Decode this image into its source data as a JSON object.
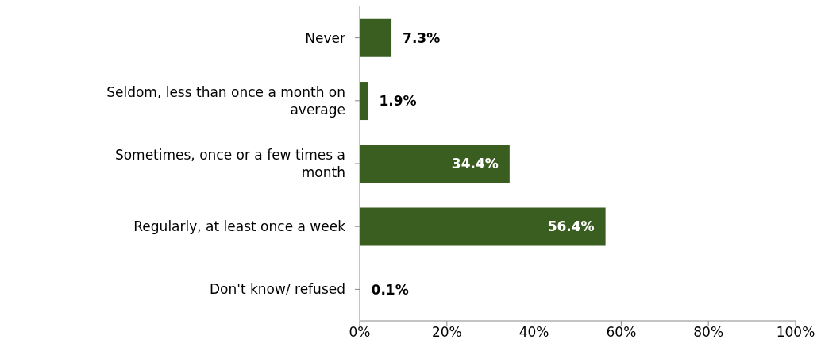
{
  "chart_data": {
    "type": "bar",
    "orientation": "horizontal",
    "categories": [
      "Never",
      "Seldom, less than once a month on average",
      "Sometimes, once or a few times a month",
      "Regularly, at least once a week",
      "Don't know/ refused"
    ],
    "values": [
      7.3,
      1.9,
      34.4,
      56.4,
      0.1
    ],
    "value_labels": [
      "7.3%",
      "1.9%",
      "34.4%",
      "56.4%",
      "0.1%"
    ],
    "color": "#3a5e1f",
    "xlim": [
      0,
      100
    ],
    "xticks": [
      {
        "value": 0,
        "label": "0%"
      },
      {
        "value": 20,
        "label": "20%"
      },
      {
        "value": 40,
        "label": "40%"
      },
      {
        "value": 60,
        "label": "60%"
      },
      {
        "value": 80,
        "label": "80%"
      },
      {
        "value": 100,
        "label": "100%"
      }
    ],
    "grid": false,
    "legend": false
  }
}
